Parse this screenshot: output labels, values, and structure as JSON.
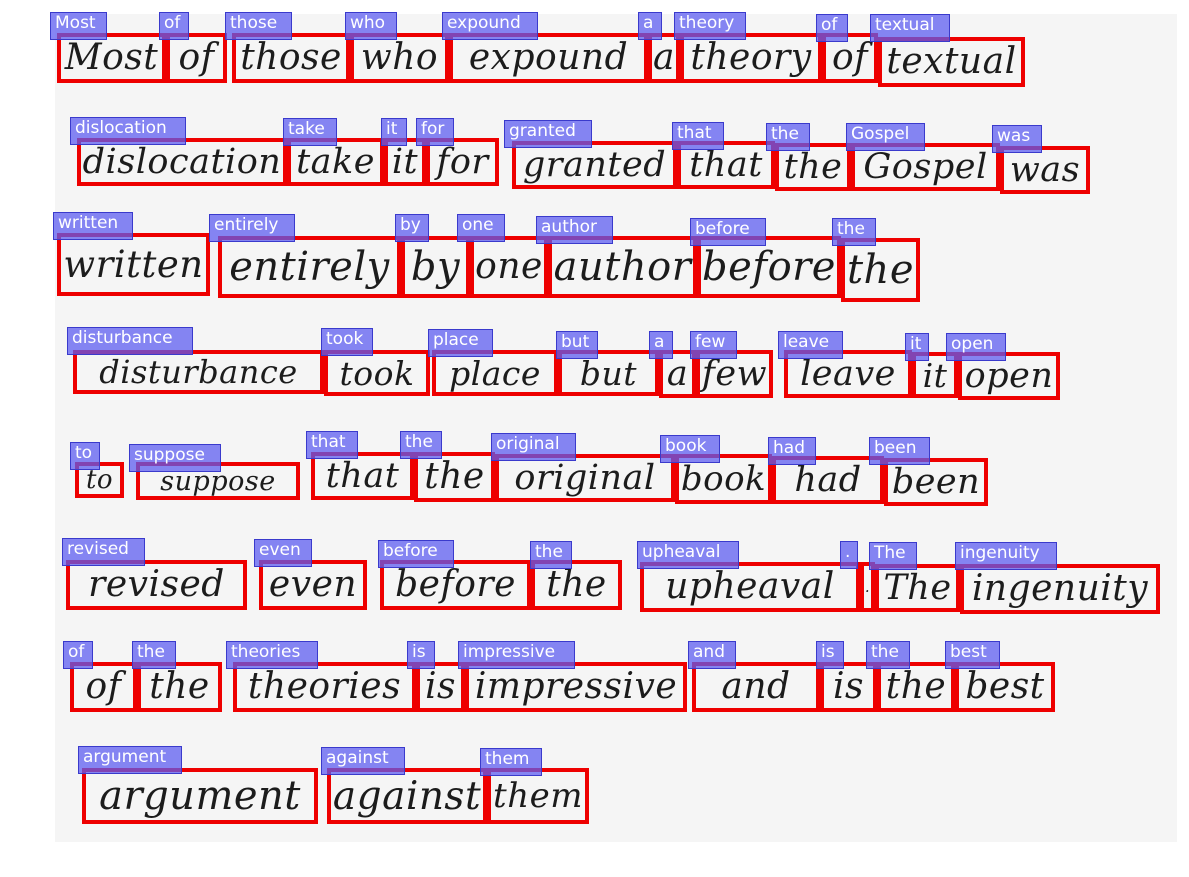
{
  "image": {
    "annotation_colors": {
      "box": "#ee0000",
      "tag": "#5c5cf0",
      "tag_text": "#ffffff",
      "ink": "#1c1c1c"
    }
  },
  "lines": [
    {
      "words": [
        "Most",
        "of",
        "those",
        "who",
        "expound",
        "a",
        "theory",
        "of",
        "textual"
      ]
    },
    {
      "words": [
        "dislocation",
        "take",
        "it",
        "for",
        "granted",
        "that",
        "the",
        "Gospel",
        "was"
      ]
    },
    {
      "words": [
        "written",
        "entirely",
        "by",
        "one",
        "author",
        "before",
        "the"
      ]
    },
    {
      "words": [
        "disturbance",
        "took",
        "place",
        "but",
        "a",
        "few",
        "leave",
        "it",
        "open"
      ]
    },
    {
      "words": [
        "to",
        "suppose",
        "that",
        "the",
        "original",
        "book",
        "had",
        "been"
      ]
    },
    {
      "words": [
        "revised",
        "even",
        "before",
        "the",
        "upheaval",
        ".",
        "The",
        "ingenuity"
      ]
    },
    {
      "words": [
        "of",
        "the",
        "theories",
        "is",
        "impressive",
        "and",
        "is",
        "the",
        "best"
      ]
    },
    {
      "words": [
        "argument",
        "against",
        "them"
      ]
    }
  ]
}
